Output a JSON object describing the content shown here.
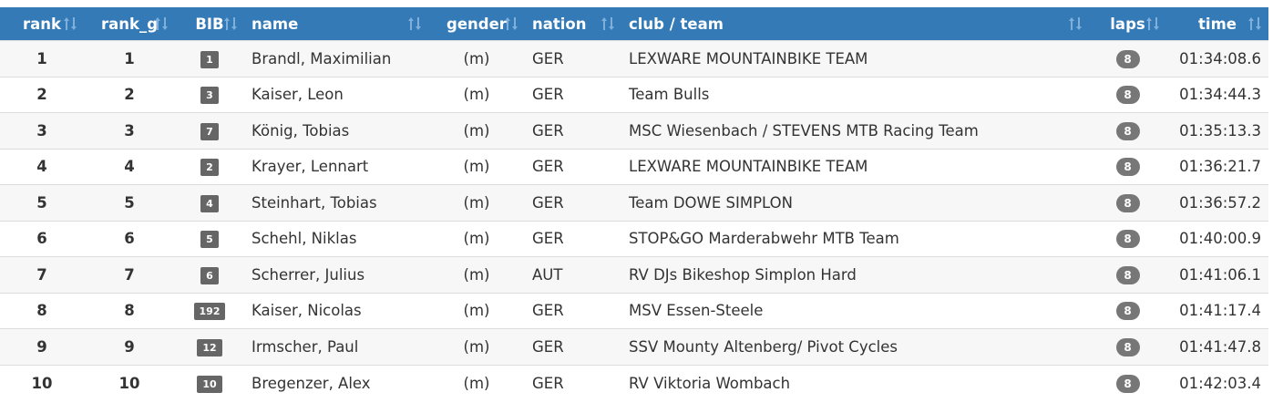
{
  "table": {
    "columns": [
      "rank",
      "rank_g",
      "BIB",
      "name",
      "gender",
      "nation",
      "club / team",
      "laps",
      "time"
    ],
    "rows": [
      [
        "1",
        "1",
        "1",
        "Brandl, Maximilian",
        "(m)",
        "GER",
        "LEXWARE MOUNTAINBIKE TEAM",
        "8",
        "01:34:08.6"
      ],
      [
        "2",
        "2",
        "3",
        "Kaiser, Leon",
        "(m)",
        "GER",
        "Team Bulls",
        "8",
        "01:34:44.3"
      ],
      [
        "3",
        "3",
        "7",
        "König, Tobias",
        "(m)",
        "GER",
        "MSC Wiesenbach / STEVENS MTB Racing Team",
        "8",
        "01:35:13.3"
      ],
      [
        "4",
        "4",
        "2",
        "Krayer, Lennart",
        "(m)",
        "GER",
        "LEXWARE MOUNTAINBIKE TEAM",
        "8",
        "01:36:21.7"
      ],
      [
        "5",
        "5",
        "4",
        "Steinhart, Tobias",
        "(m)",
        "GER",
        "Team DOWE SIMPLON",
        "8",
        "01:36:57.2"
      ],
      [
        "6",
        "6",
        "5",
        "Schehl, Niklas",
        "(m)",
        "GER",
        "STOP&GO Marderabwehr MTB Team",
        "8",
        "01:40:00.9"
      ],
      [
        "7",
        "7",
        "6",
        "Scherrer, Julius",
        "(m)",
        "AUT",
        "RV DJs Bikeshop Simplon Hard",
        "8",
        "01:41:06.1"
      ],
      [
        "8",
        "8",
        "192",
        "Kaiser, Nicolas",
        "(m)",
        "GER",
        "MSV Essen-Steele",
        "8",
        "01:41:17.4"
      ],
      [
        "9",
        "9",
        "12",
        "Irmscher, Paul",
        "(m)",
        "GER",
        "SSV Mounty Altenberg/ Pivot Cycles",
        "8",
        "01:41:47.8"
      ],
      [
        "10",
        "10",
        "10",
        "Bregenzer, Alex",
        "(m)",
        "GER",
        "RV Viktoria Wombach",
        "8",
        "01:42:03.4"
      ]
    ]
  }
}
